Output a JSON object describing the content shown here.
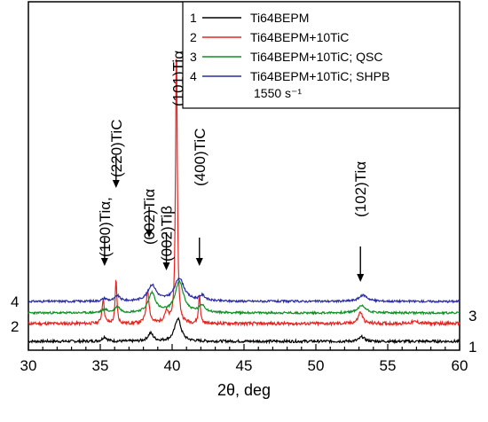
{
  "chart_data": {
    "type": "line",
    "xlabel": "2θ, deg",
    "ylabel": "",
    "xlim": [
      30,
      60
    ],
    "xticks": [
      "30",
      "35",
      "40",
      "45",
      "50",
      "55",
      "60"
    ],
    "grid": false,
    "legend_position": "top-right",
    "legend_note": "1550 s⁻¹",
    "series": [
      {
        "name": "Ti64BEPM",
        "number": "1",
        "color": "#000000",
        "offset": 0,
        "peaks": [
          [
            35.3,
            5,
            0.18
          ],
          [
            38.5,
            9,
            0.22
          ],
          [
            40.4,
            26,
            0.26
          ],
          [
            53.2,
            5,
            0.22
          ]
        ],
        "noise": 1.5,
        "seed": 7
      },
      {
        "name": "Ti64BEPM+10TiC",
        "number": "2",
        "color": "#e8231f",
        "offset": 20,
        "peaks": [
          [
            35.2,
            28,
            0.09
          ],
          [
            36.1,
            50,
            0.07
          ],
          [
            38.3,
            37,
            0.12
          ],
          [
            39.6,
            12,
            0.18
          ],
          [
            40.3,
            320,
            0.07
          ],
          [
            41.9,
            33,
            0.07
          ],
          [
            53.1,
            13,
            0.18
          ],
          [
            56.9,
            2,
            0.4
          ]
        ],
        "noise": 1.8,
        "seed": 11
      },
      {
        "name": "Ti64BEPM+10TiC; QSC",
        "number": "3",
        "color": "#0e8f24",
        "offset": 32,
        "peaks": [
          [
            35.3,
            4,
            0.2
          ],
          [
            36.2,
            7,
            0.2
          ],
          [
            38.6,
            22,
            0.3
          ],
          [
            40.5,
            35,
            0.35
          ],
          [
            42.1,
            8,
            0.25
          ],
          [
            53.2,
            8,
            0.35
          ]
        ],
        "noise": 1.2,
        "seed": 23
      },
      {
        "name": "Ti64BEPM+10TiC; SHPB",
        "number": "4",
        "color": "#2a2aa6",
        "offset": 45,
        "peaks": [
          [
            35.3,
            3,
            0.2
          ],
          [
            36.2,
            6,
            0.2
          ],
          [
            38.6,
            18,
            0.35
          ],
          [
            40.5,
            26,
            0.4
          ],
          [
            42.1,
            6,
            0.25
          ],
          [
            53.3,
            7,
            0.35
          ]
        ],
        "noise": 1.2,
        "seed": 31
      }
    ],
    "annotations": [
      {
        "text": "(100)Tiα,",
        "x": 35.3,
        "arrow": true
      },
      {
        "text": "(220)TiC",
        "x": 36.1,
        "arrow": true
      },
      {
        "text": "(002)Tiα",
        "x": 38.4,
        "arrow": true
      },
      {
        "text": "(002)Tiβ",
        "x": 39.6,
        "arrow": true
      },
      {
        "text": "(101)Tiα",
        "x": 40.4,
        "arrow": false
      },
      {
        "text": "(400)TiC",
        "x": 41.9,
        "arrow": true
      },
      {
        "text": "(102)Tiα",
        "x": 53.1,
        "arrow": true
      }
    ],
    "side_labels": {
      "left": [
        "4",
        "2"
      ],
      "right": [
        "3",
        "1"
      ]
    }
  }
}
